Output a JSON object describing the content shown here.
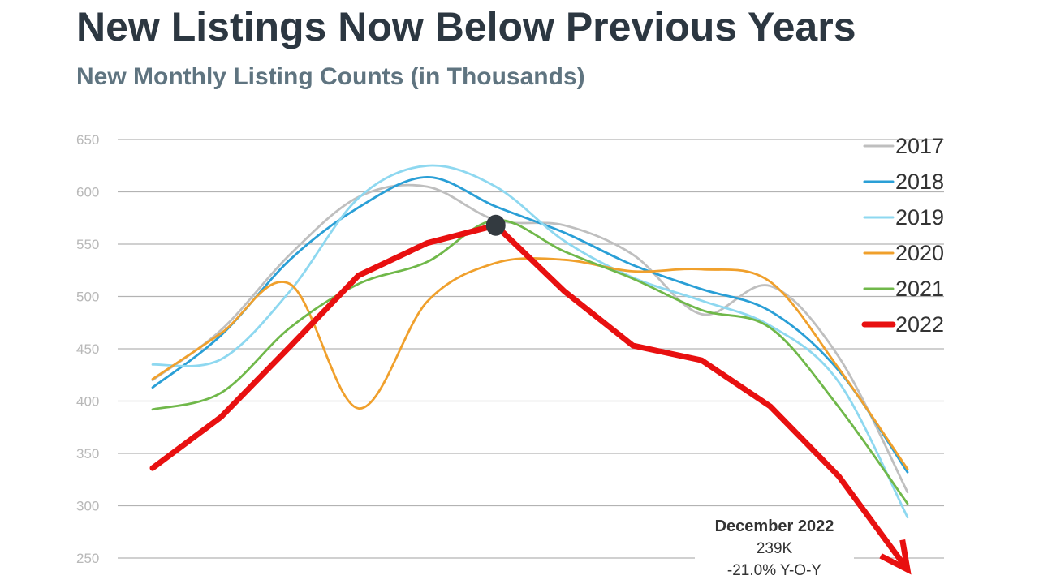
{
  "chart_data": {
    "type": "line",
    "title": "New Listings Now Below Previous Years",
    "subtitle": "New Monthly Listing Counts (in Thousands)",
    "xlabel": "",
    "ylabel": "",
    "ylim": [
      250,
      650
    ],
    "yticks": [
      650,
      600,
      550,
      500,
      450,
      400,
      350,
      300,
      250
    ],
    "grid": true,
    "legend_position": "right",
    "x": [
      1,
      2,
      3,
      4,
      5,
      6,
      7,
      8,
      9,
      10,
      11,
      12
    ],
    "series": [
      {
        "name": "2017",
        "color": "#bfbfbf",
        "values": [
          420,
          468,
          540,
          595,
          605,
          573,
          568,
          540,
          483,
          510,
          442,
          313
        ]
      },
      {
        "name": "2018",
        "color": "#2a9fd6",
        "values": [
          413,
          463,
          535,
          585,
          614,
          586,
          561,
          530,
          507,
          486,
          429,
          332
        ]
      },
      {
        "name": "2019",
        "color": "#8ed8f0",
        "values": [
          435,
          440,
          505,
          594,
          625,
          605,
          553,
          518,
          496,
          472,
          418,
          289
        ]
      },
      {
        "name": "2020",
        "color": "#f0a02c",
        "values": [
          421,
          465,
          512,
          393,
          495,
          532,
          535,
          524,
          526,
          514,
          431,
          335
        ]
      },
      {
        "name": "2021",
        "color": "#70b84a",
        "values": [
          392,
          408,
          470,
          512,
          533,
          573,
          543,
          517,
          487,
          470,
          394,
          302
        ]
      },
      {
        "name": "2022",
        "color": "#e81010",
        "values": [
          336,
          385,
          452,
          520,
          551,
          568,
          505,
          453,
          439,
          395,
          328,
          239
        ]
      }
    ],
    "highlight_point": {
      "series": "2022",
      "x": 6,
      "value": 568
    },
    "annotation": {
      "title": "December 2022",
      "value": "239K",
      "change": "-21.0% Y-O-Y"
    }
  }
}
